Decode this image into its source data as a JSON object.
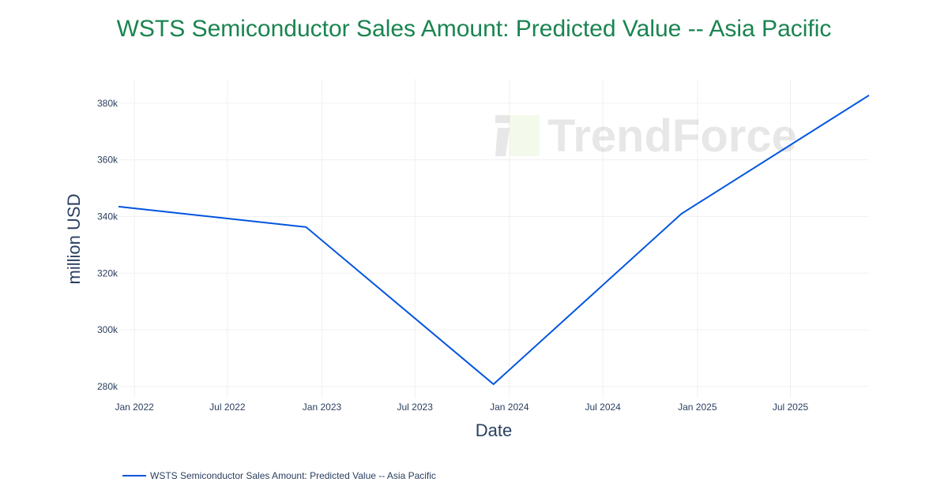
{
  "chart_data": {
    "type": "line",
    "title": "WSTS Semiconductor Sales Amount: Predicted Value -- Asia Pacific",
    "xlabel": "Date",
    "ylabel": "million USD",
    "x": [
      "2021-12-01",
      "2022-12-01",
      "2023-12-01",
      "2024-12-01",
      "2025-12-01"
    ],
    "series": [
      {
        "name": "WSTS Semiconductor Sales Amount: Predicted Value -- Asia Pacific",
        "values": [
          343500,
          336300,
          280800,
          341000,
          382800
        ],
        "color": "#0055dd"
      }
    ],
    "xlim": [
      "2021-12-01",
      "2025-12-01"
    ],
    "ylim": [
      275800,
      388600
    ],
    "x_ticks": [
      {
        "date": "2022-01-01",
        "label": "Jan 2022"
      },
      {
        "date": "2022-07-01",
        "label": "Jul 2022"
      },
      {
        "date": "2023-01-01",
        "label": "Jan 2023"
      },
      {
        "date": "2023-07-01",
        "label": "Jul 2023"
      },
      {
        "date": "2024-01-01",
        "label": "Jan 2024"
      },
      {
        "date": "2024-07-01",
        "label": "Jul 2024"
      },
      {
        "date": "2025-01-01",
        "label": "Jan 2025"
      },
      {
        "date": "2025-07-01",
        "label": "Jul 2025"
      }
    ],
    "y_ticks": [
      {
        "value": 280000,
        "label": "280k"
      },
      {
        "value": 300000,
        "label": "300k"
      },
      {
        "value": 320000,
        "label": "320k"
      },
      {
        "value": 340000,
        "label": "340k"
      },
      {
        "value": 360000,
        "label": "360k"
      },
      {
        "value": 380000,
        "label": "380k"
      }
    ],
    "grid": true,
    "legend_placement": "bottom-left",
    "title_color": "#1a8450",
    "watermark": "TrendForce"
  }
}
